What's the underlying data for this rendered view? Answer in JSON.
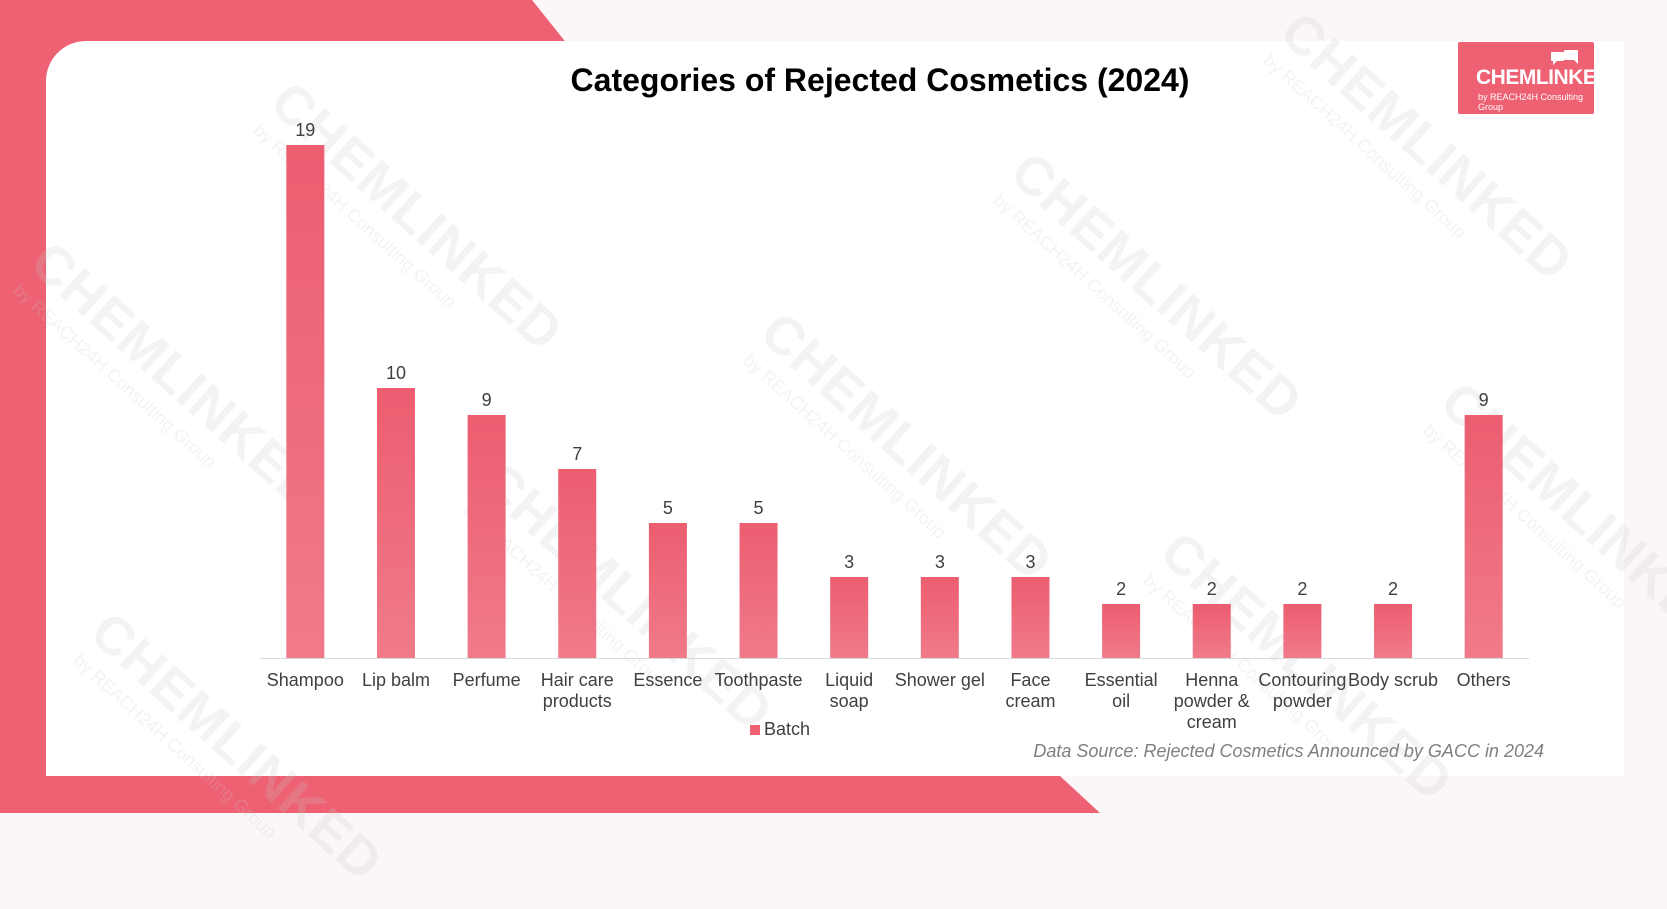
{
  "colors": {
    "accent": "#ee6173",
    "bar_top": "#ec5d70",
    "bar_bottom": "#f07b89",
    "axis": "#d9d9d9",
    "label": "#404040"
  },
  "logo": {
    "brand": "CHEMLINKED",
    "sub": "by REACH24H Consulting Group"
  },
  "watermark": {
    "brand": "CHEMLINKED",
    "sub": "by REACH24H Consulting Group"
  },
  "source_note": "Data Source: Rejected Cosmetics Announced by GACC in 2024",
  "chart_data": {
    "type": "bar",
    "title": "Categories of Rejected Cosmetics (2024)",
    "categories": [
      [
        "Shampoo"
      ],
      [
        "Lip balm"
      ],
      [
        "Perfume"
      ],
      [
        "Hair care",
        "products"
      ],
      [
        "Essence"
      ],
      [
        "Toothpaste"
      ],
      [
        "Liquid",
        "soap"
      ],
      [
        "Shower gel"
      ],
      [
        "Face",
        "cream"
      ],
      [
        "Essential",
        "oil"
      ],
      [
        "Henna",
        "powder &",
        "cream"
      ],
      [
        "Contouring",
        "powder"
      ],
      [
        "Body scrub"
      ],
      [
        "Others"
      ]
    ],
    "series": [
      {
        "name": "Batch",
        "values": [
          19,
          10,
          9,
          7,
          5,
          5,
          3,
          3,
          3,
          2,
          2,
          2,
          2,
          9
        ]
      }
    ],
    "ylim": [
      0,
      19
    ],
    "data_labels": true,
    "grid": false,
    "legend_position": "bottom"
  }
}
